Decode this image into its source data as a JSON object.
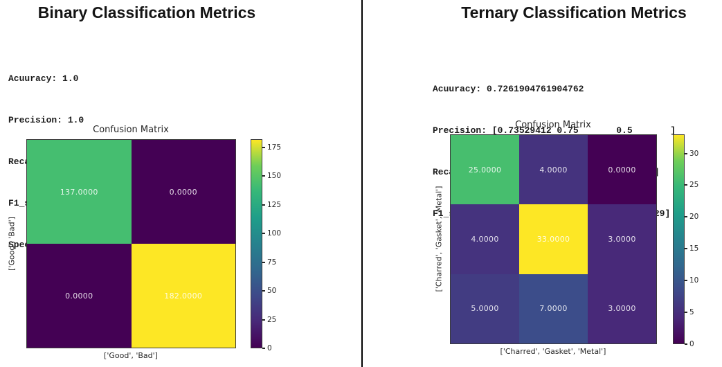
{
  "colors": {
    "divider": "#000000",
    "axis_text": "#262626",
    "cell_text": "#ffffff",
    "viridis_stops": [
      "#440154",
      "#482878",
      "#3e4989",
      "#31688e",
      "#26828e",
      "#1f9e89",
      "#35b779",
      "#6ece58",
      "#fde725"
    ]
  },
  "chart_data": [
    {
      "type": "heatmap",
      "panel_title": "Binary Classification Metrics",
      "metrics_text": [
        "Acuuracy: 1.0",
        "Precision: 1.0",
        "Recall: 1.0",
        "F1_score: 1.0",
        "Specificity: 1.0"
      ],
      "title": "Confusion Matrix",
      "xlabel": "['Good', 'Bad']",
      "ylabel": "['Good', 'Bad']",
      "categories": [
        "Good",
        "Bad"
      ],
      "matrix": [
        [
          137,
          0
        ],
        [
          0,
          182
        ]
      ],
      "cell_labels": [
        [
          "137.0000",
          "0.0000"
        ],
        [
          "0.0000",
          "182.0000"
        ]
      ],
      "colormap": "viridis",
      "vmin": 0,
      "vmax": 182,
      "colorbar_ticks": [
        0,
        25,
        50,
        75,
        100,
        125,
        150,
        175
      ],
      "legend_position": "right-colorbar",
      "grid": false
    },
    {
      "type": "heatmap",
      "panel_title": "Ternary Classification Metrics",
      "metrics_text": [
        "Acuuracy: 0.7261904761904762",
        "Precision: [0.73529412 0.75       0.5       ]",
        "Recall: [0.86206897 0.825      0.2       ]",
        "F1_score: [0.79365079 0.78571429 0.28571429]"
      ],
      "title": "Confusion Matrix",
      "xlabel": "['Charred', 'Gasket', 'Metal']",
      "ylabel": "['Charred', 'Gasket', 'Metal']",
      "categories": [
        "Charred",
        "Gasket",
        "Metal"
      ],
      "matrix": [
        [
          25,
          4,
          0
        ],
        [
          4,
          33,
          3
        ],
        [
          5,
          7,
          3
        ]
      ],
      "cell_labels": [
        [
          "25.0000",
          "4.0000",
          "0.0000"
        ],
        [
          "4.0000",
          "33.0000",
          "3.0000"
        ],
        [
          "5.0000",
          "7.0000",
          "3.0000"
        ]
      ],
      "colormap": "viridis",
      "vmin": 0,
      "vmax": 33,
      "colorbar_ticks": [
        0,
        5,
        10,
        15,
        20,
        25,
        30
      ],
      "legend_position": "right-colorbar",
      "grid": false
    }
  ]
}
